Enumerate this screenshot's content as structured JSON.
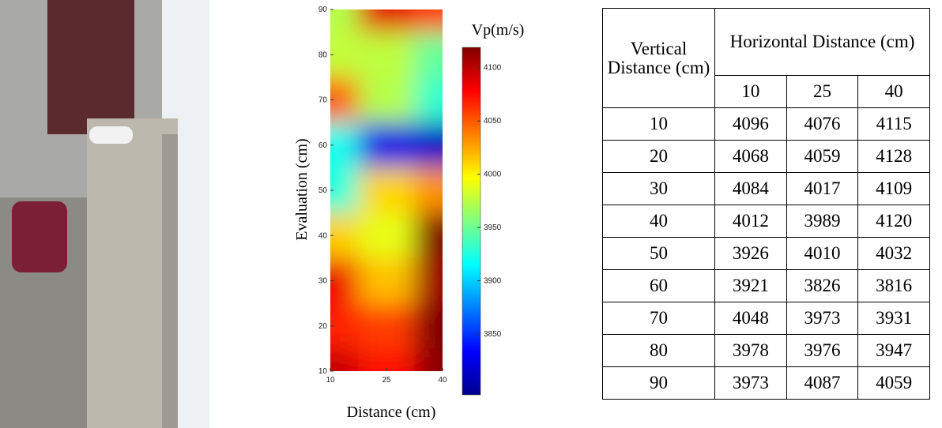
{
  "chart_data": {
    "type": "heatmap",
    "x_label": "Distance (cm)",
    "y_label": "Evaluation (cm)",
    "colorbar_label": "Vp(m/s)",
    "x": [
      10,
      25,
      40
    ],
    "y": [
      10,
      20,
      30,
      40,
      50,
      60,
      70,
      80,
      90
    ],
    "z": [
      [
        4096,
        4076,
        4115
      ],
      [
        4068,
        4059,
        4128
      ],
      [
        4084,
        4017,
        4109
      ],
      [
        4012,
        3989,
        4120
      ],
      [
        3926,
        4010,
        4032
      ],
      [
        3921,
        3826,
        3816
      ],
      [
        4048,
        3973,
        3931
      ],
      [
        3978,
        3976,
        3947
      ],
      [
        3973,
        4087,
        4059
      ]
    ],
    "xlim": [
      10,
      40
    ],
    "ylim": [
      10,
      90
    ],
    "xticks": [
      10,
      25,
      40
    ],
    "yticks": [
      10,
      20,
      30,
      40,
      50,
      60,
      70,
      80,
      90
    ],
    "clim": [
      3793,
      4119
    ],
    "colorbar_ticks": [
      3850,
      3900,
      3950,
      4000,
      4050,
      4100
    ],
    "colormap": "jet"
  },
  "table": {
    "header": {
      "vertical": "Vertical Distance (cm)",
      "horizontal": "Horizontal Distance (cm)",
      "columns": [
        "10",
        "25",
        "40"
      ]
    },
    "rows": [
      [
        10,
        4096,
        4076,
        4115
      ],
      [
        20,
        4068,
        4059,
        4128
      ],
      [
        30,
        4084,
        4017,
        4109
      ],
      [
        40,
        4012,
        3989,
        4120
      ],
      [
        50,
        3926,
        4010,
        4032
      ],
      [
        60,
        3921,
        3826,
        3816
      ],
      [
        70,
        4048,
        3973,
        3931
      ],
      [
        80,
        3978,
        3976,
        3947
      ],
      [
        90,
        3973,
        4087,
        4059
      ]
    ]
  }
}
